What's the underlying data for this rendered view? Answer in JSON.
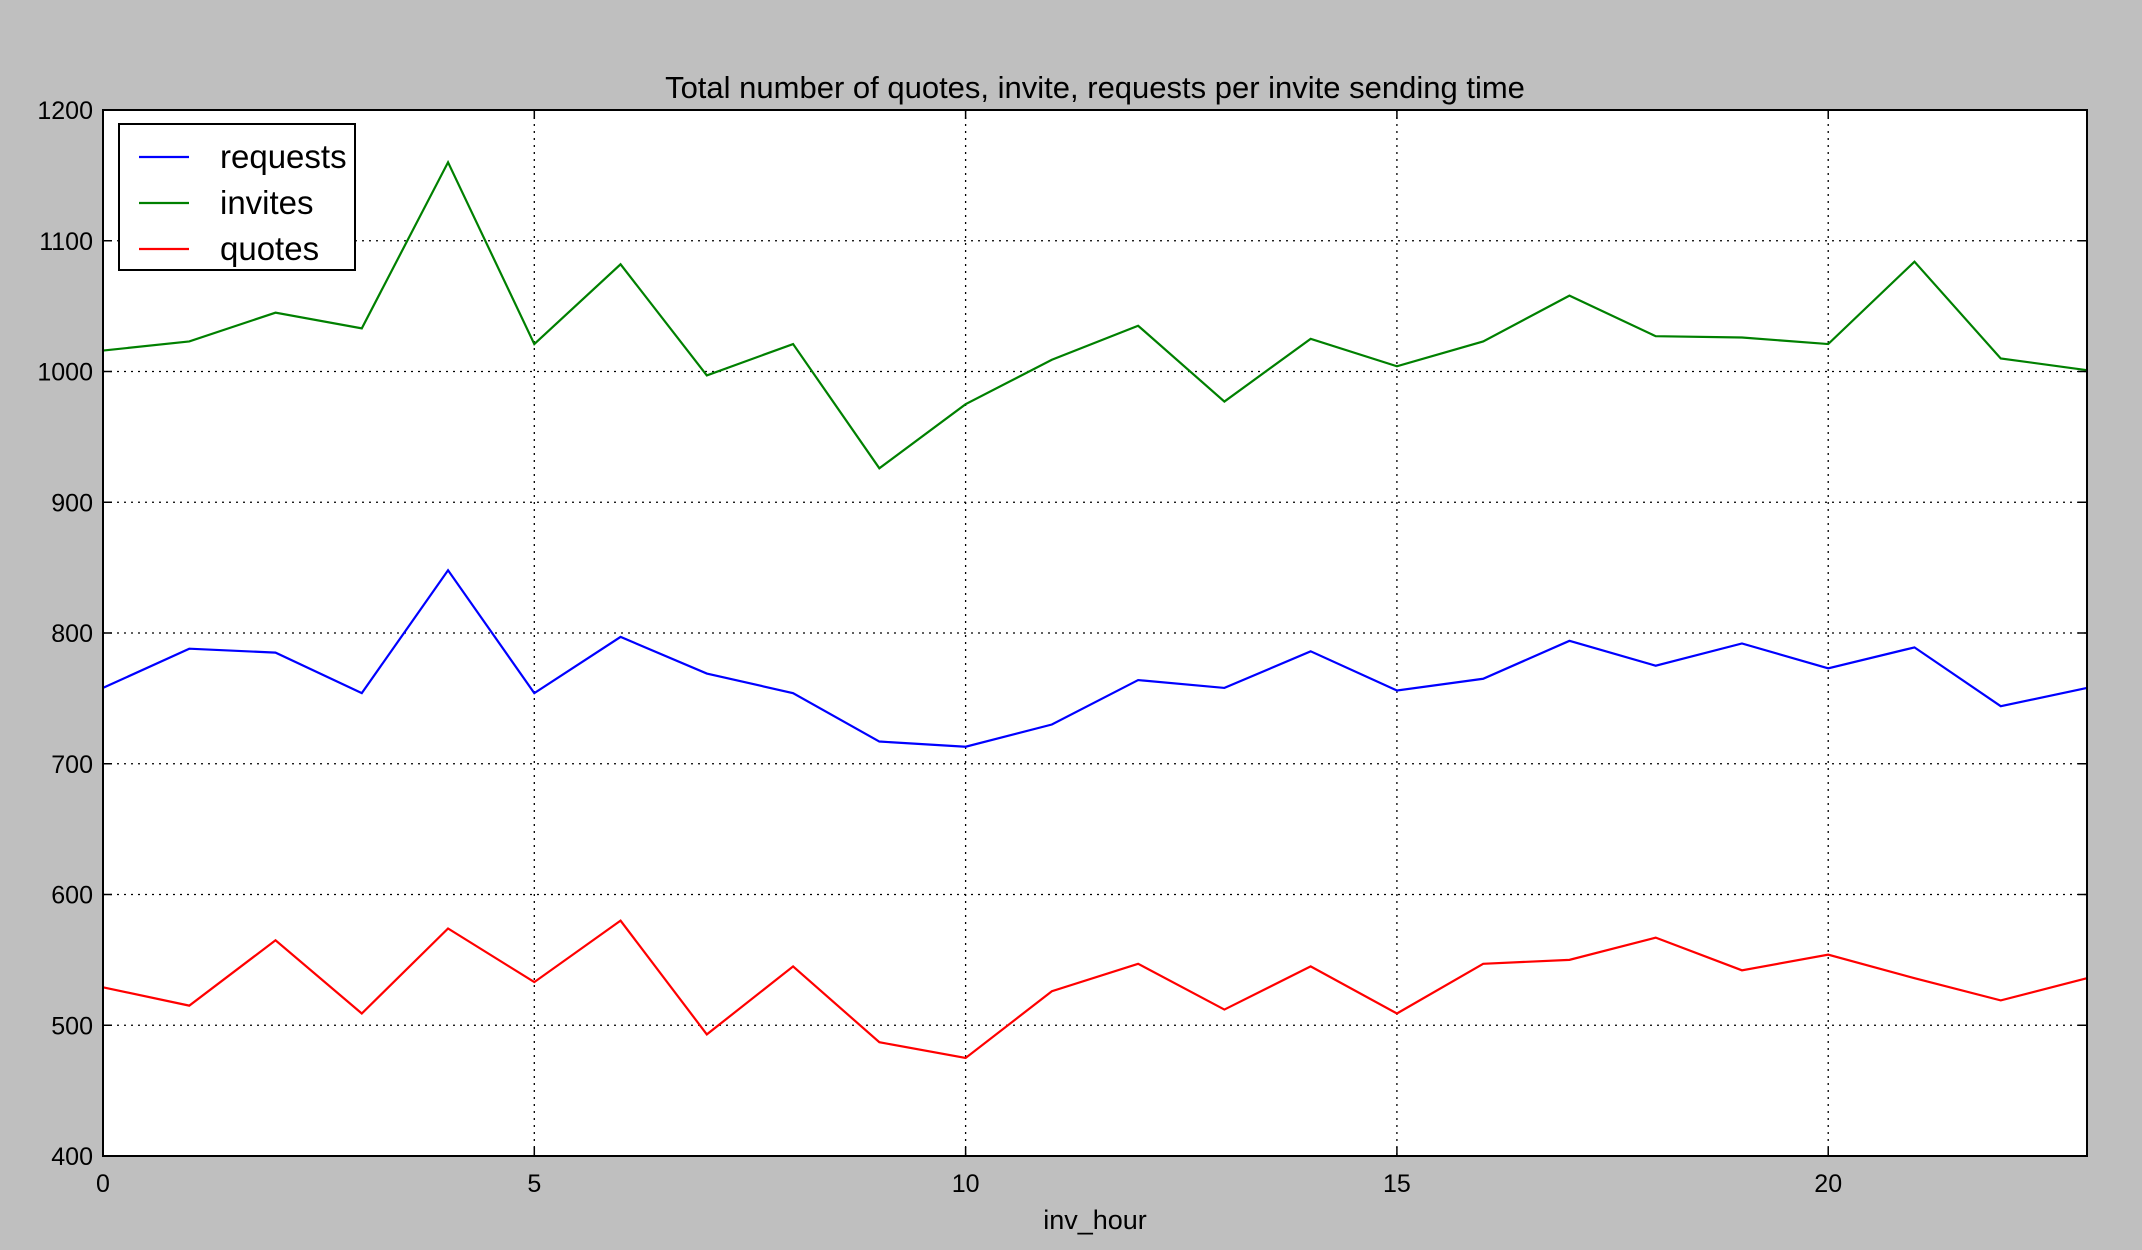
{
  "chart_data": {
    "type": "line",
    "title": "Total number of quotes, invite, requests per invite sending time",
    "xlabel": "inv_hour",
    "ylabel": "",
    "xlim": [
      0,
      23
    ],
    "ylim": [
      400,
      1200
    ],
    "xticks": [
      0,
      5,
      10,
      15,
      20
    ],
    "yticks": [
      400,
      500,
      600,
      700,
      800,
      900,
      1000,
      1100,
      1200
    ],
    "grid": true,
    "legend_position": "top-left",
    "x": [
      0,
      1,
      2,
      3,
      4,
      5,
      6,
      7,
      8,
      9,
      10,
      11,
      12,
      13,
      14,
      15,
      16,
      17,
      18,
      19,
      20,
      21,
      22,
      23
    ],
    "series": [
      {
        "name": "requests",
        "color": "#0000ff",
        "values": [
          758,
          788,
          785,
          754,
          848,
          754,
          797,
          769,
          754,
          717,
          713,
          730,
          764,
          758,
          786,
          756,
          765,
          794,
          775,
          792,
          773,
          789,
          744,
          758
        ]
      },
      {
        "name": "invites",
        "color": "#008000",
        "values": [
          1016,
          1023,
          1045,
          1033,
          1160,
          1021,
          1082,
          997,
          1021,
          926,
          975,
          1009,
          1035,
          977,
          1025,
          1004,
          1023,
          1058,
          1027,
          1026,
          1021,
          1084,
          1010,
          1001
        ]
      },
      {
        "name": "quotes",
        "color": "#ff0000",
        "values": [
          529,
          515,
          565,
          509,
          574,
          533,
          580,
          493,
          545,
          487,
          475,
          526,
          547,
          512,
          545,
          509,
          547,
          550,
          567,
          542,
          554,
          536,
          519,
          536
        ]
      }
    ]
  }
}
